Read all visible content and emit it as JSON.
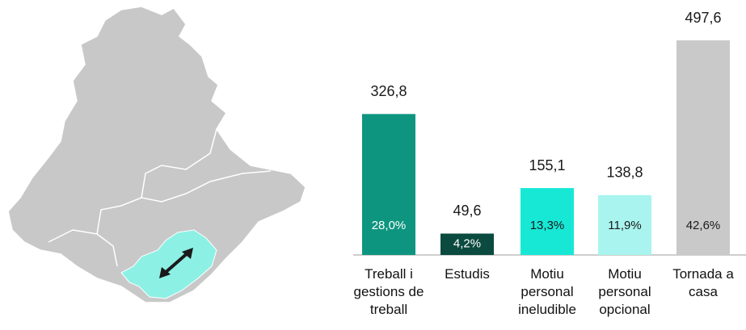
{
  "chart_data": {
    "type": "bar",
    "categories": [
      "Treball i gestions de treball",
      "Estudis",
      "Motiu personal ineludible",
      "Motiu personal opcional",
      "Tornada a casa"
    ],
    "values": [
      326.8,
      49.6,
      155.1,
      138.8,
      497.6
    ],
    "value_labels": [
      "326,8",
      "49,6",
      "155,1",
      "138,8",
      "497,6"
    ],
    "shares": [
      28.0,
      4.2,
      13.3,
      11.9,
      42.6
    ],
    "share_labels": [
      "28,0%",
      "4,2%",
      "13,3%",
      "11,9%",
      "42,6%"
    ],
    "colors": [
      "#0e9580",
      "#0b4a3f",
      "#17e8d6",
      "#a9f4ee",
      "#c9c9c9"
    ],
    "share_label_colors": [
      "#ffffff",
      "#ffffff",
      "#1a1a1a",
      "#1a1a1a",
      "#1a1a1a"
    ]
  }
}
